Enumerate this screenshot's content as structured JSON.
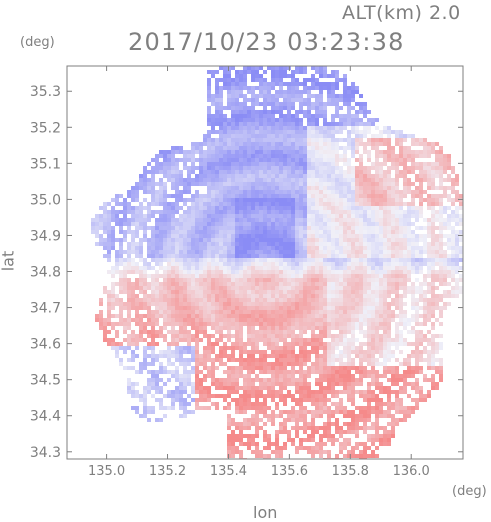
{
  "header": {
    "altitude": "ALT(km) 2.0",
    "timestamp": "2017/10/23 03:23:38"
  },
  "chart_data": {
    "type": "heatmap",
    "title": "2017/10/23 03:23:38",
    "subtitle": "ALT(km) 2.0",
    "xlabel": "lon",
    "ylabel": "lat",
    "x_unit": "(deg)",
    "y_unit": "(deg)",
    "xlim": [
      134.87,
      136.17
    ],
    "ylim": [
      34.28,
      35.37
    ],
    "x_ticks": [
      135.0,
      135.2,
      135.4,
      135.6,
      135.8,
      136.0
    ],
    "x_tick_labels": [
      "135.0",
      "135.2",
      "135.4",
      "135.6",
      "135.8",
      "136.0"
    ],
    "y_ticks": [
      34.3,
      34.4,
      34.5,
      34.6,
      34.7,
      34.8,
      34.9,
      35.0,
      35.1,
      35.2,
      35.3
    ],
    "y_tick_labels": [
      "34.3",
      "34.4",
      "34.5",
      "34.6",
      "34.7",
      "34.8",
      "34.9",
      "35.0",
      "35.1",
      "35.2",
      "35.3"
    ],
    "radar_center": {
      "lon": 135.52,
      "lat": 34.81
    },
    "colors": {
      "approaching": "#8a8cf5",
      "receding": "#f58a8a",
      "neutral": "#f0f0f8",
      "frame": "#7f7f7f"
    },
    "regions": [
      {
        "name": "north-sector",
        "polarity": "approaching",
        "intensity": 0.55
      },
      {
        "name": "north-core",
        "polarity": "approaching",
        "intensity": 0.85
      },
      {
        "name": "northeast-band",
        "polarity": "receding",
        "intensity": 0.35
      },
      {
        "name": "east-sector",
        "polarity": "receding",
        "intensity": 0.3
      },
      {
        "name": "southwest-core",
        "polarity": "receding",
        "intensity": 0.8
      },
      {
        "name": "southeast-sector",
        "polarity": "receding",
        "intensity": 0.6
      },
      {
        "name": "west-edge",
        "polarity": "approaching",
        "intensity": 0.4
      }
    ]
  }
}
